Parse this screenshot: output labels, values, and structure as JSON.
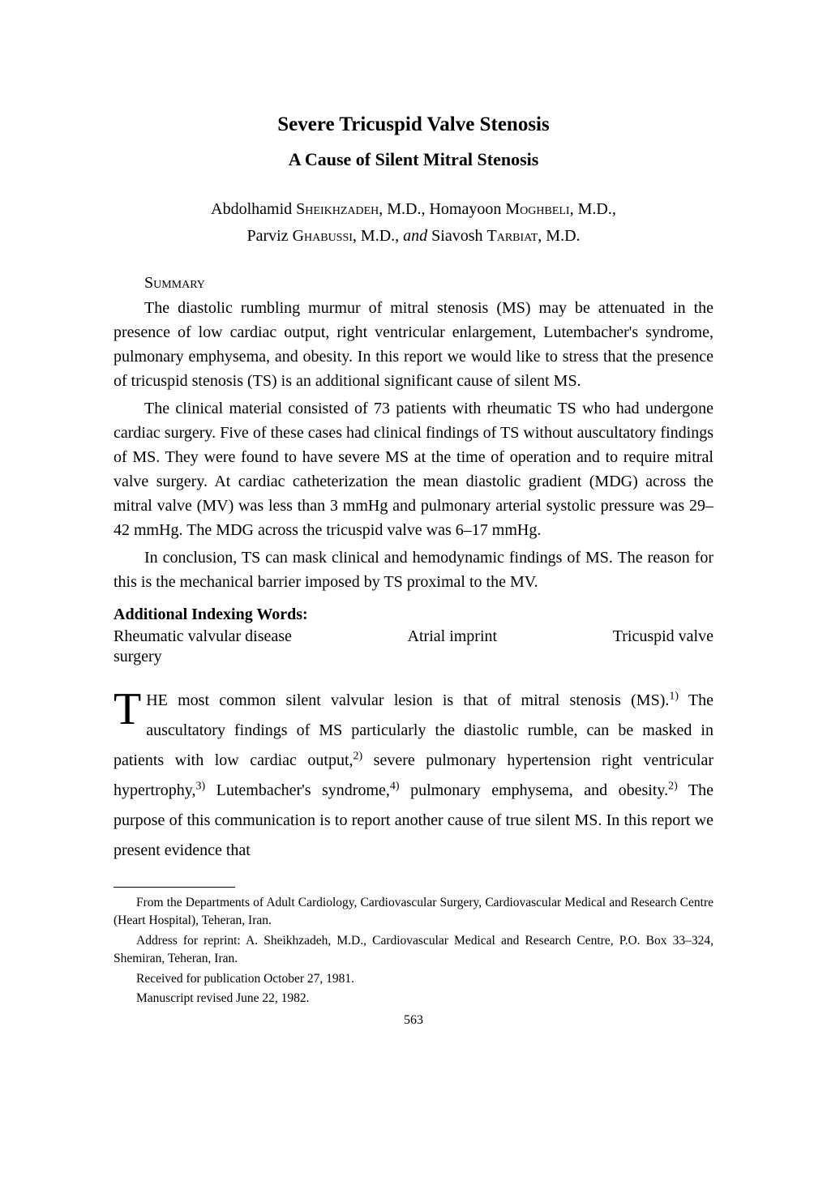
{
  "title": "Severe Tricuspid Valve Stenosis",
  "subtitle": "A Cause of Silent Mitral Stenosis",
  "authors_line1_pre": "Abdolhamid ",
  "authors_sc1": "Sheikhzadeh",
  "authors_line1_mid": ", M.D., Homayoon ",
  "authors_sc2": "Moghbeli",
  "authors_line1_end": ", M.D.,",
  "authors_line2_pre": "Parviz ",
  "authors_sc3": "Ghabussi",
  "authors_line2_mid": ", M.D., ",
  "authors_and": "and",
  "authors_line2_mid2": " Siavosh ",
  "authors_sc4": "Tarbiat",
  "authors_line2_end": ", M.D.",
  "summary_head": "Summary",
  "summary_p1": "The diastolic rumbling murmur of mitral stenosis (MS) may be attenuated in the presence of low cardiac output, right ventricular enlargement, Lutembacher's syndrome, pulmonary emphysema, and obesity. In this report we would like to stress that the presence of tricuspid stenosis (TS) is an additional significant cause of silent MS.",
  "summary_p2": "The clinical material consisted of 73 patients with rheumatic TS who had undergone cardiac surgery. Five of these cases had clinical findings of TS without auscultatory findings of MS. They were found to have severe MS at the time of operation and to require mitral valve surgery. At cardiac catheterization the mean diastolic gradient (MDG) across the mitral valve (MV) was less than 3 mmHg and pulmonary arterial systolic pressure was 29–42 mmHg. The MDG across the tricuspid valve was 6–17 mmHg.",
  "summary_p3": "In conclusion, TS can mask clinical and hemodynamic findings of MS. The reason for this is the mechanical barrier imposed by TS proximal to the MV.",
  "index_head": "Additional Indexing Words:",
  "index_w1": "Rheumatic valvular disease",
  "index_w2": "Atrial imprint",
  "index_w3": "Tricuspid valve",
  "index_w4": "surgery",
  "body_dropcap": "T",
  "body_rest_a": "HE most common silent valvular lesion is that of mitral stenosis (MS).",
  "body_rest_b": " The auscultatory findings of MS particularly the diastolic rumble, can be masked in patients with low cardiac output,",
  "body_rest_c": " severe pulmonary hypertension right ventricular hypertrophy,",
  "body_rest_d": " Lutembacher's syndrome,",
  "body_rest_e": " pulmonary emphysema, and obesity.",
  "body_rest_f": " The purpose of this communication is to report another cause of true silent MS. In this report we present evidence that",
  "sup1": "1)",
  "sup2": "2)",
  "sup3": "3)",
  "sup4": "4)",
  "sup5": "2)",
  "fn1": "From the Departments of Adult Cardiology, Cardiovascular Surgery, Cardiovascular Medical and Research Centre (Heart Hospital), Teheran, Iran.",
  "fn2": "Address for reprint: A. Sheikhzadeh, M.D., Cardiovascular Medical and Research Centre, P.O. Box 33–324, Shemiran, Teheran, Iran.",
  "fn3": "Received for publication October 27, 1981.",
  "fn4": "Manuscript revised June 22, 1982.",
  "page_num": "563"
}
